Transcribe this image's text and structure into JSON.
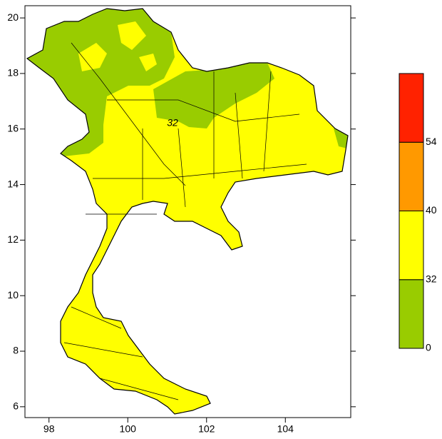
{
  "map": {
    "xlim": [
      97.39,
      105.66
    ],
    "ylim": [
      5.61,
      20.44
    ],
    "xticks": [
      98,
      100,
      102,
      104
    ],
    "yticks": [
      6,
      8,
      10,
      12,
      14,
      16,
      18,
      20
    ],
    "contour_label": "32"
  },
  "colorbar": {
    "levels": [
      0,
      32,
      40,
      54
    ],
    "colors": [
      "#99cc00",
      "#ffff00",
      "#ff9900",
      "#ff2200"
    ]
  }
}
